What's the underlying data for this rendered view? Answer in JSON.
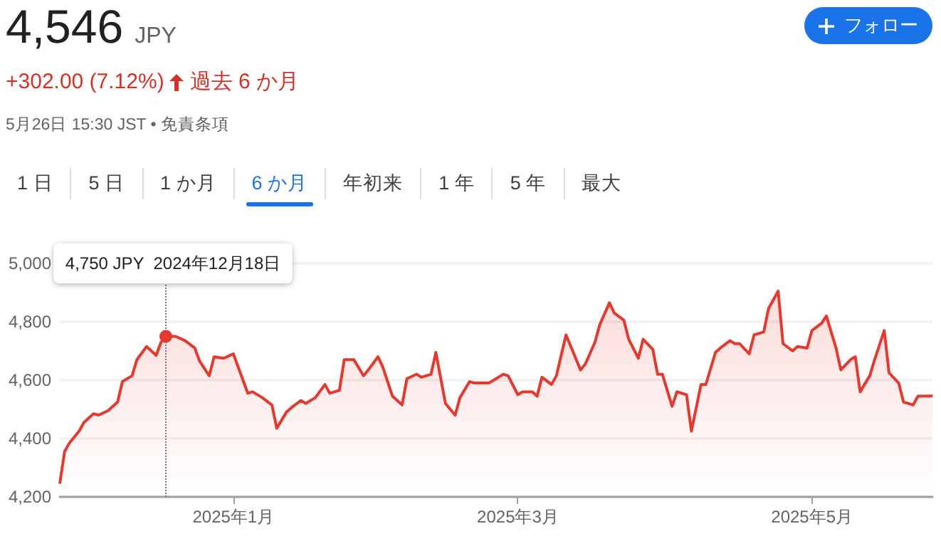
{
  "chart_data": {
    "type": "area",
    "title": "4,546",
    "subtitle": "JPY",
    "annotations": [
      "+302.00 (7.12%)",
      "過去 6 か月",
      "5月26日 15:30 JST • 免責条項",
      "フォロー",
      "1 日",
      "5 日",
      "1 か月",
      "6 か月",
      "年初来",
      "1 年",
      "5 年",
      "最大"
    ],
    "ref_lines": [
      {
        "axis": "x",
        "value": "2024-12-18",
        "label": "4,750 JPY  2024年12月18日",
        "color": "#777777",
        "line_style": "dotted"
      }
    ],
    "x": [
      "2024-11-26",
      "2024-11-27",
      "2024-11-28",
      "2024-11-30",
      "2024-12-01",
      "2024-12-03",
      "2024-12-04",
      "2024-12-06",
      "2024-12-08",
      "2024-12-09",
      "2024-12-11",
      "2024-12-12",
      "2024-12-14",
      "2024-12-16",
      "2024-12-17",
      "2024-12-18",
      "2024-12-20",
      "2024-12-22",
      "2024-12-24",
      "2024-12-25",
      "2024-12-27",
      "2024-12-28",
      "2024-12-30",
      "2025-01-01",
      "2025-01-02",
      "2025-01-04",
      "2025-01-05",
      "2025-01-07",
      "2025-01-09",
      "2025-01-10",
      "2025-01-12",
      "2025-01-13",
      "2025-01-15",
      "2025-01-16",
      "2025-01-18",
      "2025-01-20",
      "2025-01-21",
      "2025-01-23",
      "2025-01-24",
      "2025-01-26",
      "2025-01-28",
      "2025-01-29",
      "2025-01-31",
      "2025-02-01",
      "2025-02-03",
      "2025-02-05",
      "2025-02-06",
      "2025-02-08",
      "2025-02-09",
      "2025-02-11",
      "2025-02-12",
      "2025-02-14",
      "2025-02-16",
      "2025-02-17",
      "2025-02-19",
      "2025-02-20",
      "2025-02-22",
      "2025-02-23",
      "2025-02-26",
      "2025-02-27",
      "2025-03-01",
      "2025-03-02",
      "2025-03-04",
      "2025-03-05",
      "2025-03-06",
      "2025-03-08",
      "2025-03-09",
      "2025-03-11",
      "2025-03-12",
      "2025-03-14",
      "2025-03-15",
      "2025-03-17",
      "2025-03-18",
      "2025-03-20",
      "2025-03-21",
      "2025-03-23",
      "2025-03-24",
      "2025-03-26",
      "2025-03-27",
      "2025-03-29",
      "2025-03-30",
      "2025-03-31",
      "2025-04-02",
      "2025-04-03",
      "2025-04-05",
      "2025-04-06",
      "2025-04-08",
      "2025-04-09",
      "2025-04-11",
      "2025-04-12",
      "2025-04-14",
      "2025-04-15",
      "2025-04-16",
      "2025-04-18",
      "2025-04-19",
      "2025-04-21",
      "2025-04-22",
      "2025-04-24",
      "2025-04-25",
      "2025-04-27",
      "2025-04-28",
      "2025-04-30",
      "2025-05-01",
      "2025-05-03",
      "2025-05-04",
      "2025-05-06",
      "2025-05-07",
      "2025-05-09",
      "2025-05-10",
      "2025-05-11",
      "2025-05-13",
      "2025-05-14",
      "2025-05-16",
      "2025-05-17",
      "2025-05-19",
      "2025-05-20",
      "2025-05-22",
      "2025-05-23",
      "2025-05-26"
    ],
    "series": [
      {
        "color": "#e5392f",
        "values": [
          4245,
          4355,
          4385,
          4425,
          4455,
          4485,
          4480,
          4495,
          4525,
          4595,
          4615,
          4670,
          4715,
          4685,
          4730,
          4750,
          4750,
          4735,
          4710,
          4665,
          4615,
          4680,
          4675,
          4690,
          4645,
          4555,
          4560,
          4540,
          4515,
          4435,
          4490,
          4505,
          4530,
          4520,
          4540,
          4585,
          4555,
          4565,
          4670,
          4670,
          4615,
          4635,
          4680,
          4645,
          4545,
          4515,
          4605,
          4620,
          4610,
          4620,
          4695,
          4520,
          4480,
          4540,
          4595,
          4590,
          4590,
          4590,
          4620,
          4615,
          4550,
          4560,
          4560,
          4545,
          4610,
          4585,
          4615,
          4755,
          4715,
          4635,
          4655,
          4730,
          4790,
          4865,
          4830,
          4805,
          4740,
          4675,
          4740,
          4705,
          4620,
          4620,
          4510,
          4560,
          4550,
          4425,
          4585,
          4585,
          4695,
          4710,
          4735,
          4725,
          4725,
          4690,
          4755,
          4765,
          4845,
          4905,
          4725,
          4700,
          4715,
          4710,
          4770,
          4795,
          4820,
          4710,
          4635,
          4670,
          4680,
          4560,
          4615,
          4670,
          4770,
          4625,
          4590,
          4525,
          4515,
          4545,
          4546
        ]
      }
    ],
    "xlim": [
      "2024-11-26",
      "2025-05-26"
    ],
    "xticks": [
      {
        "value": "2025-01-01",
        "label": "2025年1月"
      },
      {
        "value": "2025-03-01",
        "label": "2025年3月"
      },
      {
        "value": "2025-05-01",
        "label": "2025年5月"
      }
    ],
    "ylim": [
      4200,
      5000
    ],
    "yticks": [
      {
        "value": 4200,
        "label": "4,200"
      },
      {
        "value": 4400,
        "label": "4,400"
      },
      {
        "value": 4600,
        "label": "4,600"
      },
      {
        "value": 4800,
        "label": "4,800"
      },
      {
        "value": 5000,
        "label": "5,000"
      }
    ],
    "grid": "y"
  }
}
